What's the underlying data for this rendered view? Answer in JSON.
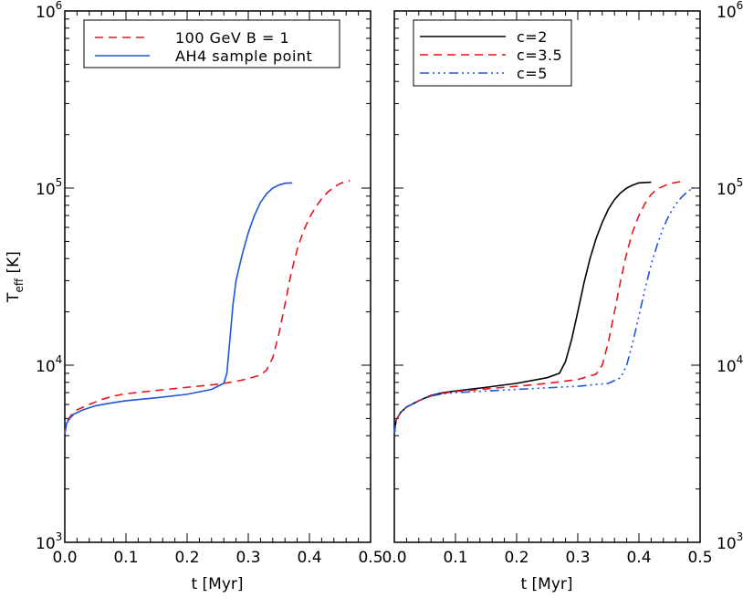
{
  "chart_data": [
    {
      "type": "line",
      "xlabel": "t [Myr]",
      "ylabel": "T",
      "ylabel_sub": "eff",
      "ylabel_unit": " [K]",
      "xlim": [
        0.0,
        0.5
      ],
      "ylim": [
        1000,
        1000000
      ],
      "yscale": "log",
      "x_ticks": [
        "0.0",
        "0.1",
        "0.2",
        "0.3",
        "0.4",
        "0.5"
      ],
      "y_ticks": [
        {
          "base": "10",
          "exp": "3"
        },
        {
          "base": "10",
          "exp": "4"
        },
        {
          "base": "10",
          "exp": "5"
        },
        {
          "base": "10",
          "exp": "6"
        }
      ],
      "legend_position": "top-left",
      "series": [
        {
          "name": "100 GeV B = 1",
          "color": "#e8141e",
          "dash": "dashed",
          "x": [
            0.0,
            0.003,
            0.01,
            0.02,
            0.04,
            0.06,
            0.08,
            0.1,
            0.15,
            0.2,
            0.25,
            0.28,
            0.3,
            0.32,
            0.33,
            0.34,
            0.35,
            0.36,
            0.37,
            0.38,
            0.39,
            0.4,
            0.41,
            0.42,
            0.43,
            0.44,
            0.45,
            0.46,
            0.466
          ],
          "y": [
            4100,
            4800,
            5200,
            5600,
            6000,
            6400,
            6700,
            6900,
            7200,
            7500,
            7800,
            8100,
            8400,
            8800,
            9400,
            11000,
            15000,
            22000,
            33000,
            45000,
            57000,
            68000,
            78000,
            87000,
            95000,
            101000,
            106000,
            109000,
            110000
          ]
        },
        {
          "name": "AH4 sample point",
          "color": "#1f55d8",
          "dash": "solid",
          "x": [
            0.0,
            0.003,
            0.008,
            0.015,
            0.03,
            0.05,
            0.08,
            0.1,
            0.15,
            0.2,
            0.24,
            0.26,
            0.265,
            0.27,
            0.275,
            0.28,
            0.29,
            0.3,
            0.31,
            0.32,
            0.33,
            0.34,
            0.35,
            0.36,
            0.372
          ],
          "y": [
            4100,
            4700,
            5000,
            5300,
            5600,
            5900,
            6150,
            6300,
            6550,
            6850,
            7300,
            7900,
            9000,
            14000,
            22000,
            30000,
            42000,
            56000,
            70000,
            83000,
            93000,
            100000,
            104000,
            106500,
            107000
          ]
        }
      ]
    },
    {
      "type": "line",
      "xlabel": "t [Myr]",
      "ylabel": "",
      "xlim": [
        0.0,
        0.5
      ],
      "ylim": [
        1000,
        1000000
      ],
      "yscale": "log",
      "x_ticks": [
        "0.0",
        "0.1",
        "0.2",
        "0.3",
        "0.4",
        "0.5"
      ],
      "y_ticks": [
        {
          "base": "10",
          "exp": "3"
        },
        {
          "base": "10",
          "exp": "4"
        },
        {
          "base": "10",
          "exp": "5"
        },
        {
          "base": "10",
          "exp": "6"
        }
      ],
      "legend_position": "top-left",
      "series": [
        {
          "name": "c=2",
          "color": "#000000",
          "dash": "solid",
          "x": [
            0.0,
            0.003,
            0.01,
            0.02,
            0.04,
            0.06,
            0.08,
            0.1,
            0.15,
            0.2,
            0.25,
            0.27,
            0.28,
            0.29,
            0.3,
            0.31,
            0.32,
            0.33,
            0.34,
            0.35,
            0.36,
            0.37,
            0.38,
            0.39,
            0.4,
            0.42
          ],
          "y": [
            4100,
            4900,
            5400,
            5800,
            6300,
            6750,
            7000,
            7150,
            7500,
            7900,
            8500,
            9000,
            10500,
            14000,
            20000,
            29000,
            40000,
            52000,
            64000,
            76000,
            86000,
            94000,
            100000,
            104000,
            107000,
            108000
          ]
        },
        {
          "name": "c=3.5",
          "color": "#e8141e",
          "dash": "dashed",
          "x": [
            0.0,
            0.003,
            0.01,
            0.02,
            0.04,
            0.06,
            0.08,
            0.1,
            0.15,
            0.2,
            0.25,
            0.3,
            0.33,
            0.34,
            0.35,
            0.36,
            0.37,
            0.38,
            0.39,
            0.4,
            0.41,
            0.42,
            0.43,
            0.45,
            0.47
          ],
          "y": [
            4100,
            4900,
            5400,
            5800,
            6300,
            6700,
            6950,
            7100,
            7350,
            7600,
            7900,
            8300,
            8900,
            10000,
            13500,
            20000,
            30000,
            43000,
            57000,
            70000,
            82000,
            92000,
            99000,
            106000,
            109000
          ]
        },
        {
          "name": "c=5",
          "color": "#1f55d8",
          "dash": "dashdot",
          "x": [
            0.0,
            0.003,
            0.01,
            0.02,
            0.04,
            0.06,
            0.08,
            0.1,
            0.15,
            0.2,
            0.25,
            0.3,
            0.35,
            0.37,
            0.38,
            0.39,
            0.4,
            0.41,
            0.42,
            0.43,
            0.44,
            0.45,
            0.46,
            0.47,
            0.48,
            0.49
          ],
          "y": [
            4100,
            4900,
            5400,
            5800,
            6300,
            6700,
            6900,
            7000,
            7150,
            7300,
            7450,
            7600,
            7900,
            8500,
            10000,
            13500,
            19000,
            27000,
            37000,
            48000,
            60000,
            71000,
            81000,
            89000,
            96000,
            101000
          ]
        }
      ]
    }
  ]
}
